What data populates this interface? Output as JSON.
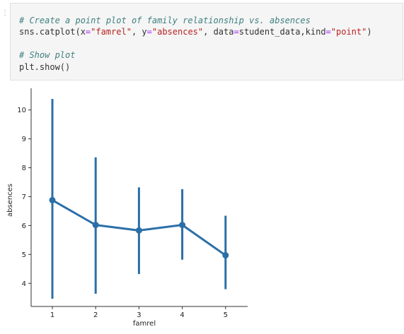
{
  "cell": {
    "gutter_marker": "⋮",
    "code_lines": [
      {
        "tokens": [
          {
            "t": "# Create a point plot of family relationship vs. absences",
            "c": "comment"
          }
        ]
      },
      {
        "tokens": [
          {
            "t": "sns.catplot(x",
            "c": "code"
          },
          {
            "t": "=",
            "c": "op"
          },
          {
            "t": "\"famrel\"",
            "c": "str"
          },
          {
            "t": ", y",
            "c": "code"
          },
          {
            "t": "=",
            "c": "op"
          },
          {
            "t": "\"absences\"",
            "c": "str"
          },
          {
            "t": ", data",
            "c": "code"
          },
          {
            "t": "=",
            "c": "op"
          },
          {
            "t": "student_data,kind",
            "c": "code"
          },
          {
            "t": "=",
            "c": "op"
          },
          {
            "t": "\"point\"",
            "c": "str"
          },
          {
            "t": ")",
            "c": "code"
          }
        ]
      },
      {
        "tokens": []
      },
      {
        "tokens": [
          {
            "t": "# Show plot",
            "c": "comment"
          }
        ]
      },
      {
        "tokens": [
          {
            "t": "plt.show()",
            "c": "code"
          }
        ]
      }
    ]
  },
  "colors": {
    "series": "#2b6fa8",
    "axis": "#333333",
    "text": "#222222"
  },
  "chart_data": {
    "type": "line",
    "style": "point",
    "categories": [
      "1",
      "2",
      "3",
      "4",
      "5"
    ],
    "values": [
      6.88,
      6.02,
      5.83,
      6.02,
      4.97
    ],
    "ci_low": [
      3.47,
      3.64,
      4.32,
      4.82,
      3.8
    ],
    "ci_high": [
      10.38,
      8.36,
      7.32,
      7.26,
      6.34
    ],
    "xlabel": "famrel",
    "ylabel": "absences",
    "yticks": [
      4,
      5,
      6,
      7,
      8,
      9,
      10
    ],
    "ylim": [
      3.2,
      10.75
    ],
    "grid": false,
    "legend": "none"
  }
}
